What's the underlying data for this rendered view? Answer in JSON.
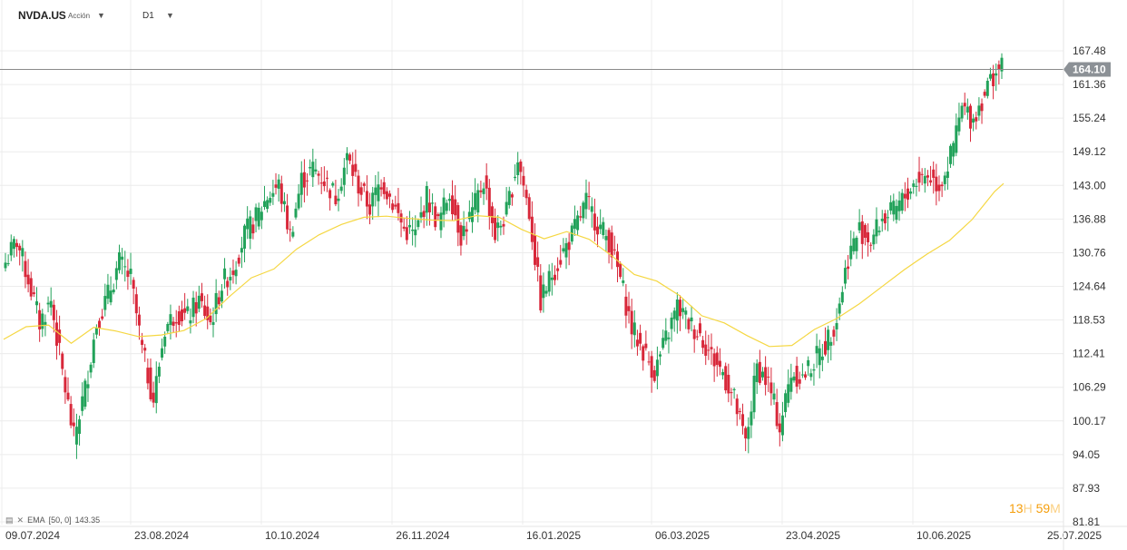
{
  "toolbar": {
    "symbol": "NVDA.US",
    "symbol_type": "Acción",
    "timeframe": "D1"
  },
  "legend": {
    "indicator": "EMA",
    "params": "[50, 0]",
    "value": "143.35"
  },
  "countdown": {
    "hours": "13",
    "hours_unit": "H",
    "minutes": "59",
    "minutes_unit": "M"
  },
  "colors": {
    "up": "#22a25a",
    "down": "#d8283a",
    "ema": "#f5d742",
    "grid": "#ececec",
    "price_line": "#8a8a8a",
    "price_label_bg": "#8c9196",
    "accent": "#f59e0b"
  },
  "chart_data": {
    "type": "candlestick",
    "title": "NVDA.US D1",
    "y_range": [
      81.81,
      173.6
    ],
    "y_ticks": [
      "167.48",
      "161.36",
      "155.24",
      "149.12",
      "143.00",
      "136.88",
      "130.76",
      "124.64",
      "118.53",
      "112.41",
      "106.29",
      "100.17",
      "94.05",
      "87.93",
      "81.81"
    ],
    "x_ticks": [
      "09.07.2024",
      "23.08.2024",
      "10.10.2024",
      "26.11.2024",
      "16.01.2025",
      "06.03.2025",
      "23.04.2025",
      "10.06.2025",
      "25.07.2025"
    ],
    "current_price": "164.10",
    "current_price_value": 164.1,
    "ema_label": "EMA [50, 0]",
    "ema_last": 143.35,
    "anchors": [
      [
        0,
        129
      ],
      [
        4,
        133
      ],
      [
        8,
        126
      ],
      [
        12,
        118
      ],
      [
        16,
        122
      ],
      [
        20,
        109
      ],
      [
        24,
        97
      ],
      [
        28,
        106
      ],
      [
        32,
        118
      ],
      [
        36,
        123
      ],
      [
        40,
        129
      ],
      [
        44,
        126
      ],
      [
        48,
        113
      ],
      [
        52,
        104
      ],
      [
        56,
        117
      ],
      [
        60,
        120
      ],
      [
        64,
        119
      ],
      [
        68,
        122
      ],
      [
        72,
        118
      ],
      [
        76,
        125
      ],
      [
        80,
        128
      ],
      [
        84,
        134
      ],
      [
        88,
        137
      ],
      [
        92,
        141
      ],
      [
        96,
        143
      ],
      [
        100,
        134
      ],
      [
        104,
        144
      ],
      [
        108,
        146
      ],
      [
        112,
        144
      ],
      [
        116,
        141
      ],
      [
        120,
        148
      ],
      [
        124,
        143
      ],
      [
        128,
        139
      ],
      [
        132,
        144
      ],
      [
        136,
        140
      ],
      [
        140,
        135
      ],
      [
        144,
        134
      ],
      [
        148,
        141
      ],
      [
        152,
        136
      ],
      [
        156,
        142
      ],
      [
        160,
        134
      ],
      [
        164,
        138
      ],
      [
        168,
        144
      ],
      [
        172,
        134
      ],
      [
        176,
        138
      ],
      [
        180,
        148
      ],
      [
        184,
        138
      ],
      [
        188,
        122
      ],
      [
        192,
        127
      ],
      [
        196,
        131
      ],
      [
        200,
        135
      ],
      [
        204,
        140
      ],
      [
        208,
        136
      ],
      [
        212,
        133
      ],
      [
        216,
        126
      ],
      [
        220,
        117
      ],
      [
        224,
        113
      ],
      [
        228,
        109
      ],
      [
        232,
        115
      ],
      [
        236,
        121
      ],
      [
        240,
        118
      ],
      [
        244,
        116
      ],
      [
        248,
        112
      ],
      [
        252,
        109
      ],
      [
        256,
        104
      ],
      [
        260,
        96
      ],
      [
        264,
        110
      ],
      [
        268,
        107
      ],
      [
        272,
        99
      ],
      [
        276,
        109
      ],
      [
        280,
        108
      ],
      [
        284,
        111
      ],
      [
        288,
        114
      ],
      [
        292,
        119
      ],
      [
        296,
        130
      ],
      [
        300,
        135
      ],
      [
        304,
        133
      ],
      [
        308,
        137
      ],
      [
        312,
        138
      ],
      [
        316,
        141
      ],
      [
        320,
        144
      ],
      [
        324,
        145
      ],
      [
        328,
        143
      ],
      [
        332,
        148
      ],
      [
        336,
        157
      ],
      [
        340,
        155
      ],
      [
        344,
        160
      ],
      [
        348,
        164
      ],
      [
        350,
        164.1
      ]
    ],
    "ema": [
      [
        0,
        115
      ],
      [
        5,
        117.3
      ],
      [
        10,
        117.6
      ],
      [
        15,
        114.3
      ],
      [
        20,
        117.2
      ],
      [
        25,
        116.5
      ],
      [
        30,
        115.5
      ],
      [
        35,
        115.8
      ],
      [
        40,
        116.6
      ],
      [
        45,
        118.8
      ],
      [
        50,
        122.7
      ],
      [
        55,
        126.2
      ],
      [
        60,
        127.8
      ],
      [
        65,
        131.4
      ],
      [
        70,
        134
      ],
      [
        75,
        135.9
      ],
      [
        80,
        137.2
      ],
      [
        85,
        137.4
      ],
      [
        90,
        137
      ],
      [
        95,
        136.7
      ],
      [
        100,
        136.6
      ],
      [
        105,
        137.5
      ],
      [
        110,
        137.2
      ],
      [
        115,
        135
      ],
      [
        120,
        133.3
      ],
      [
        125,
        134.6
      ],
      [
        130,
        133.2
      ],
      [
        135,
        130.2
      ],
      [
        140,
        126.8
      ],
      [
        145,
        125.6
      ],
      [
        150,
        123
      ],
      [
        155,
        119.3
      ],
      [
        160,
        118
      ],
      [
        165,
        115.7
      ],
      [
        170,
        113.7
      ],
      [
        175,
        113.9
      ],
      [
        180,
        116.8
      ],
      [
        185,
        118.8
      ],
      [
        190,
        121.5
      ],
      [
        195,
        124.6
      ],
      [
        200,
        127.7
      ],
      [
        205,
        130.5
      ],
      [
        210,
        133
      ],
      [
        215,
        136.8
      ],
      [
        220,
        141.9
      ],
      [
        222,
        143.35
      ]
    ]
  }
}
